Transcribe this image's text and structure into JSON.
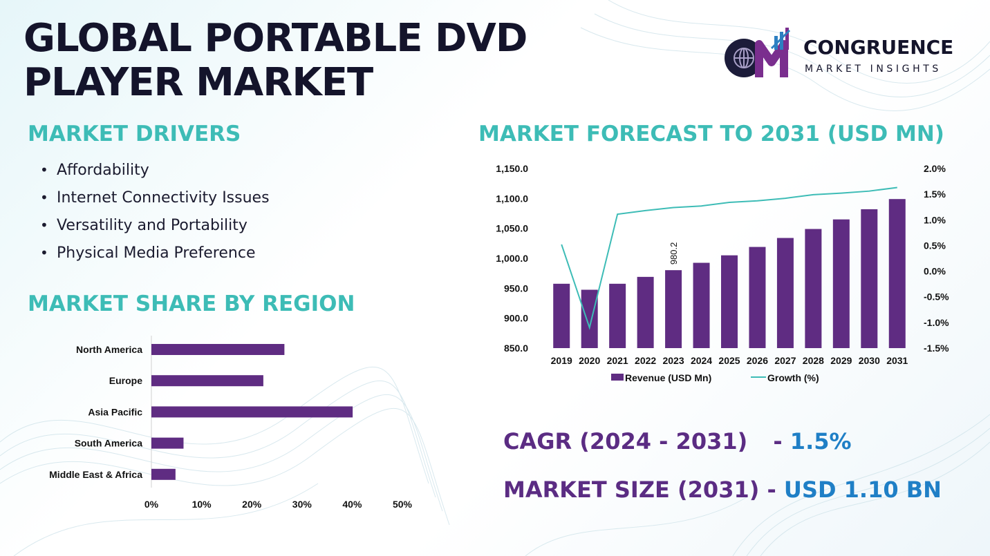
{
  "page": {
    "title_line1": "GLOBAL PORTABLE DVD",
    "title_line2": "PLAYER MARKET"
  },
  "logo": {
    "name": "CONGRUENCE",
    "tagline": "MARKET INSIGHTS",
    "mark_letters": "CM"
  },
  "drivers": {
    "heading": "MARKET DRIVERS",
    "items": [
      "Affordability",
      "Internet Connectivity Issues",
      "Versatility and Portability",
      "Physical Media Preference"
    ]
  },
  "region": {
    "heading": "MARKET SHARE BY REGION"
  },
  "forecast": {
    "heading": "MARKET FORECAST TO 2031 (USD MN)"
  },
  "stats": {
    "cagr_label": "CAGR (2024 - 2031)",
    "cagr_dash": "-",
    "cagr_value": "1.5%",
    "size_label": "MARKET SIZE (2031)",
    "size_dash": "-",
    "size_value": "USD 1.10 BN"
  },
  "colors": {
    "bar": "#5f2c82",
    "line": "#3dbcb6",
    "heading": "#3dbcb6",
    "stat_label": "#5b2c83",
    "stat_value": "#1f7fc6"
  },
  "chart_data": [
    {
      "type": "bar",
      "orientation": "horizontal",
      "categories": [
        "North America",
        "Europe",
        "Asia Pacific",
        "South America",
        "Middle East & Africa"
      ],
      "values": [
        26.5,
        22.3,
        40.1,
        6.4,
        4.8
      ],
      "x_ticks": [
        "0%",
        "10%",
        "20%",
        "30%",
        "40%",
        "50%"
      ],
      "xlim": [
        0,
        50
      ],
      "grid": false
    },
    {
      "type": "bar",
      "combo": "bar+line",
      "categories": [
        "2019",
        "2020",
        "2021",
        "2022",
        "2023",
        "2024",
        "2025",
        "2026",
        "2027",
        "2028",
        "2029",
        "2030",
        "2031"
      ],
      "series": [
        {
          "name": "Revenue (USD Mn)",
          "type": "bar",
          "axis": "left",
          "values": [
            957.5,
            947.5,
            957.5,
            969.0,
            980.2,
            992.5,
            1005.0,
            1019.0,
            1034.0,
            1049.0,
            1065.0,
            1082.0,
            1099.0
          ]
        },
        {
          "name": "Growth (%)",
          "type": "line",
          "axis": "right",
          "values": [
            0.52,
            -1.1,
            1.11,
            1.18,
            1.24,
            1.27,
            1.34,
            1.37,
            1.42,
            1.49,
            1.52,
            1.56,
            1.63
          ]
        }
      ],
      "data_labels": [
        {
          "category": "2023",
          "text": "980.2"
        }
      ],
      "y_left_ticks": [
        "850.0",
        "900.0",
        "950.0",
        "1,000.0",
        "1,050.0",
        "1,100.0",
        "1,150.0"
      ],
      "y_left_lim": [
        850,
        1150
      ],
      "y_right_ticks": [
        "-1.5%",
        "-1.0%",
        "-0.5%",
        "0.0%",
        "0.5%",
        "1.0%",
        "1.5%",
        "2.0%"
      ],
      "y_right_lim": [
        -1.5,
        2.0
      ],
      "legend": "bottom",
      "grid": false
    }
  ]
}
